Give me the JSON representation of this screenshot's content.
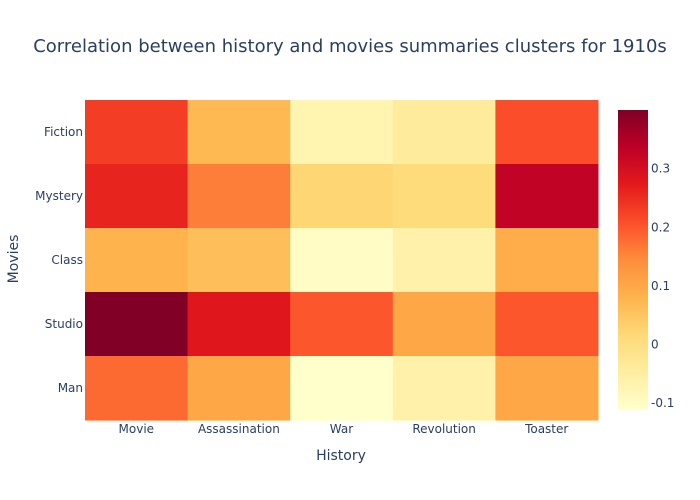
{
  "chart_data": {
    "type": "heatmap",
    "title": "Correlation between history and movies summaries clusters for 1910s",
    "xlabel": "History",
    "ylabel": "Movies",
    "x_categories": [
      "Movie",
      "Assassination",
      "War",
      "Revolution",
      "Toaster"
    ],
    "y_categories": [
      "Fiction",
      "Mystery",
      "Class",
      "Studio",
      "Man"
    ],
    "z": [
      [
        0.23,
        0.07,
        -0.07,
        -0.04,
        0.21
      ],
      [
        0.26,
        0.16,
        0.02,
        0.01,
        0.33
      ],
      [
        0.08,
        0.06,
        -0.1,
        -0.06,
        0.09
      ],
      [
        0.4,
        0.28,
        0.2,
        0.1,
        0.2
      ],
      [
        0.18,
        0.1,
        -0.11,
        -0.06,
        0.1
      ]
    ],
    "zmin": -0.11,
    "zmax": 0.4,
    "colorscale": "YlOrRd",
    "colorbar_ticks": [
      "-0.1",
      "0",
      "0.1",
      "0.2",
      "0.3"
    ],
    "colorbar_tick_values": [
      -0.1,
      0,
      0.1,
      0.2,
      0.3
    ]
  }
}
